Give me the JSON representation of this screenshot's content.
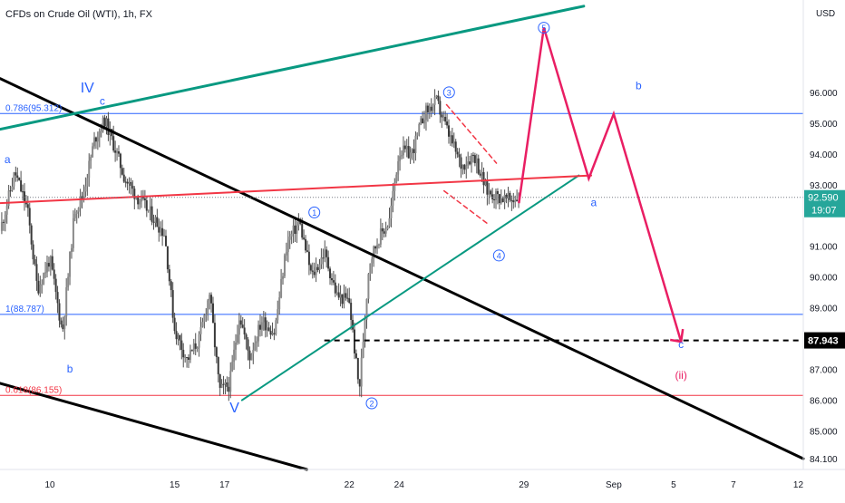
{
  "header": {
    "symbol_label": "CFDs on Crude Oil (WTI), 1h, FX"
  },
  "price_axis": {
    "unit": "USD",
    "ticks": [
      "96.000",
      "95.000",
      "94.000",
      "93.000",
      "91.000",
      "90.000",
      "89.000",
      "87.000",
      "86.000",
      "85.000",
      "84.100"
    ],
    "current_price": "92.590",
    "countdown": "19:07",
    "target_price": "87.943"
  },
  "time_axis": {
    "ticks": [
      "10",
      "15",
      "17",
      "22",
      "24",
      "29",
      "Sep",
      "5",
      "7",
      "12"
    ]
  },
  "fib_levels": [
    {
      "label": "0.786(95.312)",
      "value": 95.312,
      "color": "#2962ff"
    },
    {
      "label": "1(88.787)",
      "value": 88.787,
      "color": "#2962ff"
    },
    {
      "label": "0.618(86.155)",
      "value": 86.155,
      "color": "#f23645"
    }
  ],
  "wave_labels": [
    {
      "text": "IV",
      "color": "#2962ff",
      "x": 11.5,
      "y": 96.0
    },
    {
      "text": "c",
      "color": "#2962ff",
      "x": 12.1,
      "y": 95.6
    },
    {
      "text": "a",
      "color": "#2962ff",
      "x": 8.3,
      "y": 93.7
    },
    {
      "text": "b",
      "color": "#2962ff",
      "x": 10.8,
      "y": 86.9
    },
    {
      "text": "V",
      "color": "#2962ff",
      "x": 17.4,
      "y": 85.6
    },
    {
      "text": "a",
      "color": "#2962ff",
      "x": 31.8,
      "y": 92.3
    },
    {
      "text": "b",
      "color": "#2962ff",
      "x": 33.6,
      "y": 96.1
    },
    {
      "text": "c",
      "color": "#2962ff",
      "x": 35.3,
      "y": 87.7
    },
    {
      "text": "(ii)",
      "color": "#e91e63",
      "x": 35.3,
      "y": 86.7
    }
  ],
  "circled_labels": [
    {
      "text": "3",
      "x": 26.0,
      "y": 96.0
    },
    {
      "text": "5",
      "x": 29.8,
      "y": 98.1
    },
    {
      "text": "1",
      "x": 20.6,
      "y": 92.1
    },
    {
      "text": "4",
      "x": 28.0,
      "y": 90.7
    },
    {
      "text": "2",
      "x": 22.9,
      "y": 85.9
    }
  ],
  "colors": {
    "up_candle": "#26a69a",
    "down_candle": "#ef5350",
    "bars": "#505050",
    "channel": "#000000",
    "trend_green": "#089981",
    "trend_red": "#f23645",
    "projection": "#e91e63",
    "blue_line": "#2962ff",
    "label_blue": "#2962ff",
    "price_badge": "#26a69a",
    "target_badge": "#000000"
  },
  "chart_data": {
    "type": "line",
    "title": "",
    "xlabel": "",
    "ylabel": "USD",
    "x_axis": "day of month (Aug), continuing to Sep",
    "ylim": [
      83.75,
      99.0
    ],
    "xlim": [
      8.0,
      40.2
    ],
    "price_series": {
      "x": [
        8.0,
        8.6,
        9.1,
        9.5,
        10.0,
        10.5,
        11.0,
        11.3,
        11.8,
        12.2,
        12.6,
        13.0,
        13.5,
        14.0,
        14.6,
        15.0,
        15.5,
        16.0,
        16.4,
        16.8,
        17.2,
        17.6,
        18.0,
        18.5,
        19.0,
        19.5,
        20.0,
        20.5,
        21.0,
        21.5,
        22.0,
        22.4,
        22.8,
        23.2,
        23.6,
        24.0,
        24.5,
        25.0,
        25.5,
        26.0,
        26.5,
        27.0,
        27.5,
        28.0,
        28.4,
        28.8
      ],
      "y": [
        91.5,
        93.4,
        92.2,
        89.6,
        90.6,
        88.2,
        92.2,
        92.6,
        94.5,
        95.1,
        94.2,
        93.2,
        92.6,
        92.1,
        91.4,
        88.3,
        87.3,
        88.0,
        89.5,
        86.3,
        86.5,
        88.8,
        87.4,
        88.6,
        88.2,
        91.1,
        91.8,
        90.0,
        90.8,
        89.4,
        89.2,
        86.3,
        90.5,
        91.3,
        91.8,
        94.1,
        94.0,
        95.3,
        95.7,
        94.6,
        93.6,
        94.0,
        92.8,
        92.6,
        92.5,
        92.59
      ]
    },
    "annotations": {
      "current_price": 92.59,
      "target": 87.943,
      "projection_path": {
        "x": [
          28.8,
          29.8,
          31.6,
          32.6,
          35.3
        ],
        "y": [
          92.4,
          98.1,
          93.2,
          95.3,
          87.9
        ]
      },
      "channel_upper": {
        "x": [
          8.0,
          40.2
        ],
        "y": [
          96.45,
          84.1
        ]
      },
      "channel_lower": {
        "x": [
          8.0,
          20.3
        ],
        "y": [
          86.55,
          83.75
        ]
      },
      "green_upper": {
        "x": [
          8.0,
          31.4
        ],
        "y": [
          94.8,
          98.8
        ]
      },
      "green_lower": {
        "x": [
          17.7,
          31.2
        ],
        "y": [
          86.0,
          93.3
        ]
      },
      "red_line": {
        "x": [
          8.0,
          31.7
        ],
        "y": [
          92.4,
          93.3
        ]
      },
      "red_dashed_wedge": [
        {
          "x": [
            25.9,
            27.9
          ],
          "y": [
            95.6,
            93.7
          ]
        },
        {
          "x": [
            25.8,
            27.6
          ],
          "y": [
            92.8,
            91.7
          ]
        }
      ],
      "dotted_current_line": 92.59,
      "dashed_target_line": {
        "x_start": 21.0,
        "value": 87.943
      }
    },
    "legend": "none",
    "grid": false
  }
}
